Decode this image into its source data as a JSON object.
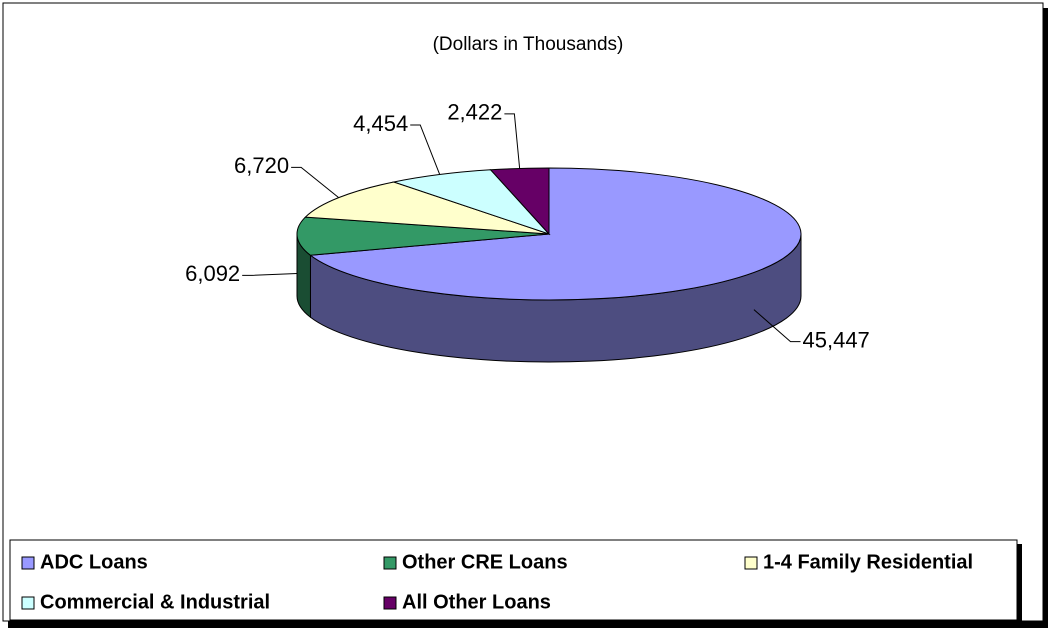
{
  "chart_data": {
    "type": "pie",
    "subtitle": "(Dollars in Thousands)",
    "categories": [
      "ADC Loans",
      "Other CRE Loans",
      "1-4 Family Residential",
      "Commercial & Industrial",
      "All Other Loans"
    ],
    "values": [
      45447,
      6092,
      6720,
      4454,
      2422
    ],
    "value_labels": [
      "45,447",
      "6,092",
      "6,720",
      "4,454",
      "2,422"
    ],
    "colors": [
      "#9999ff",
      "#339966",
      "#ffffcc",
      "#ccffff",
      "#660066"
    ]
  }
}
